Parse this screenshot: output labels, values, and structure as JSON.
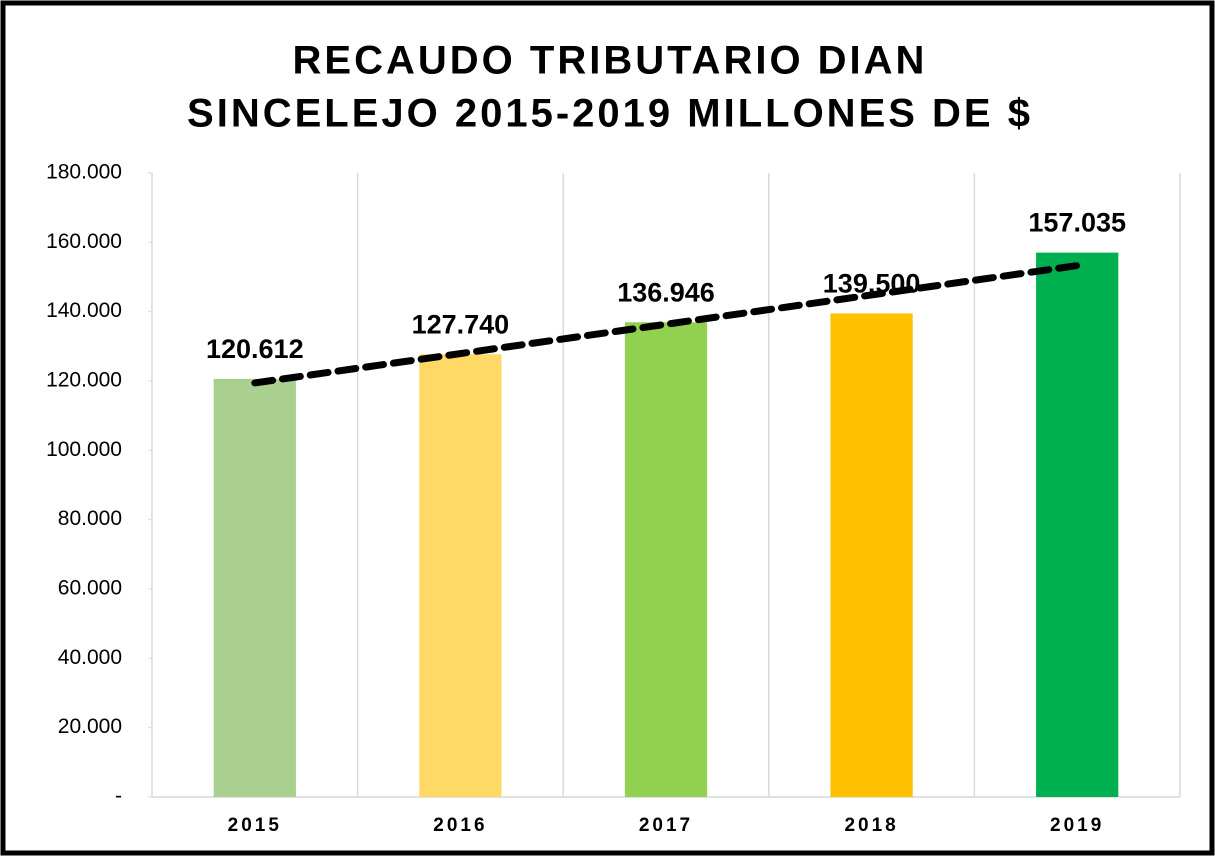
{
  "chart_data": {
    "type": "bar",
    "title": [
      "RECAUDO TRIBUTARIO DIAN",
      "SINCELEJO 2015-2019 MILLONES DE $"
    ],
    "categories": [
      "2015",
      "2016",
      "2017",
      "2018",
      "2019"
    ],
    "values": [
      120612,
      127740,
      136946,
      139500,
      157035
    ],
    "value_labels": [
      "120.612",
      "127.740",
      "136.946",
      "139.500",
      "157.035"
    ],
    "colors": [
      "#a9d08e",
      "#ffd966",
      "#92d050",
      "#ffc000",
      "#00b050"
    ],
    "ylim": [
      0,
      180000
    ],
    "yticks": [
      {
        "value": 0,
        "label": "-"
      },
      {
        "value": 20000,
        "label": "20.000"
      },
      {
        "value": 40000,
        "label": "40.000"
      },
      {
        "value": 60000,
        "label": "60.000"
      },
      {
        "value": 80000,
        "label": "80.000"
      },
      {
        "value": 100000,
        "label": "100.000"
      },
      {
        "value": 120000,
        "label": "120.000"
      },
      {
        "value": 140000,
        "label": "140.000"
      },
      {
        "value": 160000,
        "label": "160.000"
      },
      {
        "value": 180000,
        "label": "180.000"
      }
    ],
    "grid": true,
    "trendline": "linear"
  }
}
